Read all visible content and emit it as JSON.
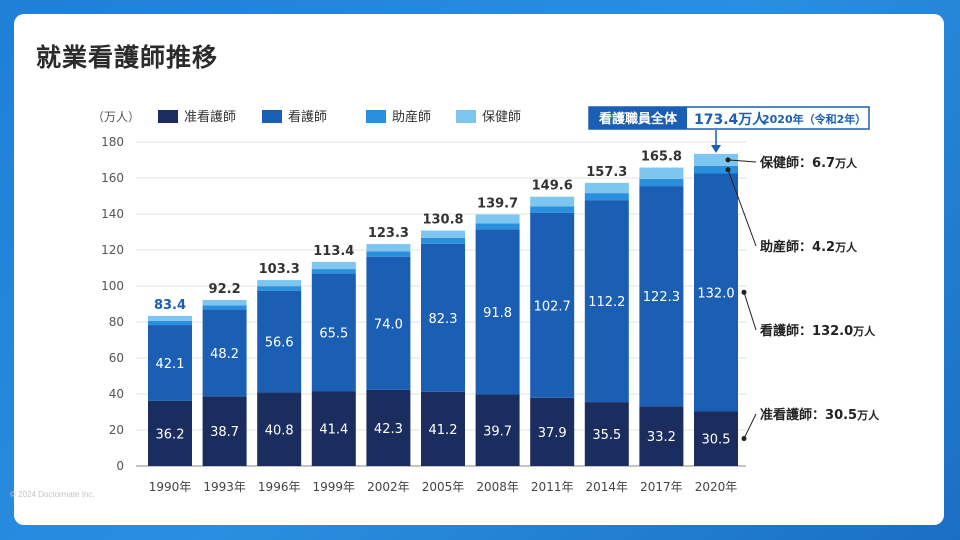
{
  "page": {
    "title": "就業看護師推移",
    "copyright": "© 2024 Doctormate Inc."
  },
  "colors": {
    "jun": "#1b2d5e",
    "kango": "#1a5fb4",
    "josan": "#2a8fdc",
    "hoken": "#7cc6f0",
    "accent": "#1a5fb4"
  },
  "chart_data": {
    "type": "bar",
    "stacked": true,
    "unit_label": "（万人）",
    "categories": [
      "1990年",
      "1993年",
      "1996年",
      "1999年",
      "2002年",
      "2005年",
      "2008年",
      "2011年",
      "2014年",
      "2017年",
      "2020年"
    ],
    "series": [
      {
        "name": "准看護師",
        "key": "jun",
        "values": [
          36.2,
          38.7,
          40.8,
          41.4,
          42.3,
          41.2,
          39.7,
          37.9,
          35.5,
          33.2,
          30.5
        ]
      },
      {
        "name": "看護師",
        "key": "kango",
        "values": [
          42.1,
          48.2,
          56.6,
          65.5,
          74.0,
          82.3,
          91.8,
          102.7,
          112.2,
          122.3,
          132.0
        ]
      },
      {
        "name": "助産師",
        "key": "josan",
        "values": [
          2.3,
          2.3,
          2.5,
          2.5,
          3.0,
          3.2,
          3.3,
          3.7,
          3.9,
          4.0,
          4.2
        ]
      },
      {
        "name": "保健師",
        "key": "hoken",
        "values": [
          2.8,
          3.0,
          3.4,
          4.0,
          4.0,
          4.1,
          4.9,
          5.3,
          5.7,
          6.3,
          6.7
        ]
      }
    ],
    "totals": [
      "83.4",
      "92.2",
      "103.3",
      "113.4",
      "123.3",
      "130.8",
      "139.7",
      "149.6",
      "157.3",
      "165.8"
    ],
    "ylim": [
      0,
      180
    ],
    "yticks": [
      0,
      20,
      40,
      60,
      80,
      100,
      120,
      140,
      160,
      180
    ],
    "callout": {
      "label": "看護職員全体",
      "value": "173.4万人",
      "year": "2020年（令和2年）"
    },
    "annotations": [
      {
        "key": "hoken",
        "name": "保健師",
        "value": "6.7",
        "unit": "万人"
      },
      {
        "key": "josan",
        "name": "助産師",
        "value": "4.2",
        "unit": "万人"
      },
      {
        "key": "kango",
        "name": "看護師",
        "value": "132.0",
        "unit": "万人"
      },
      {
        "key": "jun",
        "name": "准看護師",
        "value": "30.5",
        "unit": "万人"
      }
    ]
  }
}
